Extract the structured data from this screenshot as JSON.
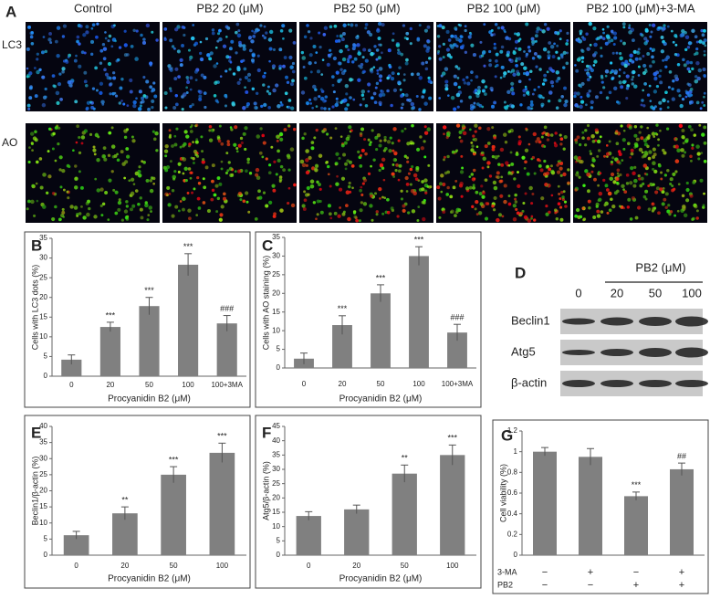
{
  "panel_a": {
    "panel_label": "A",
    "columns": [
      "Control",
      "PB2 20 (μM)",
      "PB2 50 (μM)",
      "PB2 100 (μM)",
      "PB2 100 (μM)+3-MA"
    ],
    "rows": [
      "LC3",
      "AO"
    ]
  },
  "chart_data": [
    {
      "type": "bar",
      "panel_label": "B",
      "ylabel": "Cells with LC3 dots (%)",
      "xlabel": "Procyanidin B2 (μM)",
      "categories": [
        "0",
        "20",
        "50",
        "100",
        "100+3MA"
      ],
      "values": [
        4.2,
        12.5,
        17.8,
        28.3,
        13.4
      ],
      "errors": [
        1.2,
        1.2,
        2.2,
        2.8,
        2.0
      ],
      "annotations": [
        null,
        "***",
        "***",
        "***",
        "###"
      ],
      "ylim": [
        0,
        35
      ],
      "yticks": [
        0,
        5,
        10,
        15,
        20,
        25,
        30,
        35
      ],
      "color": "#808080"
    },
    {
      "type": "bar",
      "panel_label": "C",
      "ylabel": "Cells with AO staining (%)",
      "xlabel": "Procyanidin B2 (μM)",
      "categories": [
        "0",
        "20",
        "50",
        "100",
        "100+3MA"
      ],
      "values": [
        2.5,
        11.5,
        20,
        30,
        9.5
      ],
      "errors": [
        1.5,
        2.5,
        2.3,
        2.5,
        2.2
      ],
      "annotations": [
        null,
        "***",
        "***",
        "***",
        "###"
      ],
      "ylim": [
        0,
        35
      ],
      "yticks": [
        0,
        5,
        10,
        15,
        20,
        25,
        30,
        35
      ],
      "color": "#808080"
    },
    {
      "type": "bar",
      "panel_label": "E",
      "ylabel": "Beclin1/β-actin (%)",
      "xlabel": "Procyanidin B2 (μM)",
      "categories": [
        "0",
        "20",
        "50",
        "100"
      ],
      "values": [
        6.2,
        13,
        25,
        31.8
      ],
      "errors": [
        1.2,
        2,
        2.5,
        3
      ],
      "annotations": [
        null,
        "**",
        "***",
        "***"
      ],
      "ylim": [
        0,
        40
      ],
      "yticks": [
        0,
        5,
        10,
        15,
        20,
        25,
        30,
        35,
        40
      ],
      "color": "#808080"
    },
    {
      "type": "bar",
      "panel_label": "F",
      "ylabel": "Atg5/β-actin (%)",
      "xlabel": "Procyanidin B2 (μM)",
      "categories": [
        "0",
        "20",
        "50",
        "100"
      ],
      "values": [
        13.7,
        16,
        28.5,
        35
      ],
      "errors": [
        1.5,
        1.5,
        3,
        3.5
      ],
      "annotations": [
        null,
        null,
        "**",
        "***"
      ],
      "ylim": [
        0,
        45
      ],
      "yticks": [
        0,
        5,
        10,
        15,
        20,
        25,
        30,
        35,
        40,
        45
      ],
      "color": "#808080"
    },
    {
      "type": "bar",
      "panel_label": "G",
      "ylabel": "Cell viability (%)",
      "categories": [
        null,
        null,
        null,
        null
      ],
      "values": [
        1.0,
        0.95,
        0.57,
        0.83
      ],
      "errors": [
        0.04,
        0.08,
        0.04,
        0.06
      ],
      "annotations": [
        null,
        null,
        "***",
        "##"
      ],
      "ylim": [
        0,
        1.2
      ],
      "yticks": [
        0,
        0.2,
        0.4,
        0.6,
        0.8,
        1,
        1.2
      ],
      "color": "#808080",
      "treatments": [
        {
          "name": "3-MA",
          "marks": [
            "−",
            "+",
            "−",
            "+"
          ]
        },
        {
          "name": "PB2",
          "marks": [
            "−",
            "−",
            "+",
            "+"
          ]
        }
      ]
    }
  ],
  "panel_d": {
    "panel_label": "D",
    "header": "PB2 (μM)",
    "lanes": [
      "0",
      "20",
      "50",
      "100"
    ],
    "rows": [
      "Beclin1",
      "Atg5",
      "β-actin"
    ]
  }
}
